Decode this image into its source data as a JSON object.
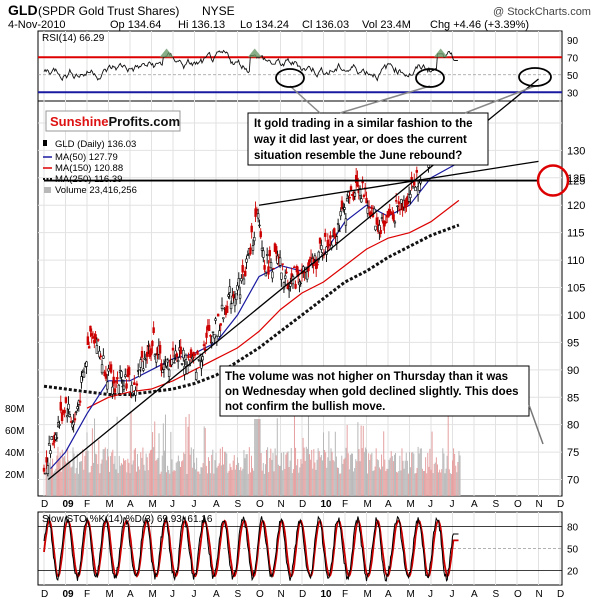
{
  "header": {
    "symbol": "GLD",
    "name": "(SPDR Gold Trust Shares)",
    "exchange": "NYSE",
    "watermark": "@ StockCharts.com",
    "date": "4-Nov-2010",
    "quote": {
      "open": "Op 134.64",
      "high": "Hi 136.13",
      "low": "Lo 134.24",
      "close": "Cl 136.03",
      "volume": "Vol 23.4M",
      "change": "Chg +4.46 (+3.39%)"
    }
  },
  "logo": {
    "part1": "Sunshine",
    "part2": "Profits.com"
  },
  "colors": {
    "price_up": "#000000",
    "price_down": "#cc0000",
    "ma50": "#1a1aa0",
    "ma150": "#dd0000",
    "ma250": "#111111",
    "volume": "#b8b8b8",
    "rsi_line": "#111111",
    "rsi_overbought": "#dd0000",
    "rsi_oversold": "#1a1aa0",
    "annotation_circle": "#dd0000"
  },
  "annotations": {
    "rsi_note": [
      "It gold trading in a similar fashion to the",
      "way it did last year, or does the current",
      "situation resemble the June rebound?"
    ],
    "volume_note": [
      "The volume was not higher on Thursday than it was",
      "on Wednesday when gold declined slightly. This does",
      "not confirm the bullish move."
    ]
  },
  "chart_data": [
    {
      "type": "line",
      "panel": "RSI",
      "title": "RSI(14) 66.29",
      "yticks": [
        30,
        50,
        70,
        90
      ],
      "ylim": [
        20,
        100
      ],
      "levels": [
        70,
        30
      ],
      "current": 66.29
    },
    {
      "type": "candlestick",
      "panel": "Price",
      "title": "GLD (Daily) 136.03",
      "legend": [
        {
          "label": "GLD (Daily) 136.03"
        },
        {
          "label": "MA(50) 127.79"
        },
        {
          "label": "MA(150) 120.88"
        },
        {
          "label": "MA(250) 116.39"
        },
        {
          "label": "Volume 23,416,256"
        }
      ],
      "yticks": [
        70,
        75,
        80,
        85,
        90,
        95,
        100,
        105,
        110,
        115,
        120,
        125,
        130,
        135
      ],
      "ylim": [
        67,
        139
      ],
      "volume_ticks": [
        "20M",
        "40M",
        "60M",
        "80M"
      ],
      "volume_ylim": [
        0,
        100
      ],
      "x_axis_labels": [
        "D",
        "09",
        "F",
        "M",
        "A",
        "M",
        "J",
        "J",
        "A",
        "S",
        "O",
        "N",
        "D",
        "10",
        "F",
        "M",
        "A",
        "M",
        "J",
        "J",
        "A",
        "S",
        "O",
        "N",
        "D"
      ],
      "close_path": [
        {
          "m": 0,
          "v": 72
        },
        {
          "m": 0.5,
          "v": 78
        },
        {
          "m": 1,
          "v": 84
        },
        {
          "m": 1.4,
          "v": 80
        },
        {
          "m": 1.9,
          "v": 90
        },
        {
          "m": 2.2,
          "v": 98
        },
        {
          "m": 2.7,
          "v": 92
        },
        {
          "m": 3.2,
          "v": 87
        },
        {
          "m": 3.7,
          "v": 89
        },
        {
          "m": 4.2,
          "v": 86
        },
        {
          "m": 4.6,
          "v": 92
        },
        {
          "m": 5.1,
          "v": 95
        },
        {
          "m": 5.6,
          "v": 90
        },
        {
          "m": 6.1,
          "v": 93
        },
        {
          "m": 6.6,
          "v": 92
        },
        {
          "m": 7.1,
          "v": 91
        },
        {
          "m": 7.6,
          "v": 96
        },
        {
          "m": 8.1,
          "v": 98
        },
        {
          "m": 8.6,
          "v": 103
        },
        {
          "m": 9.2,
          "v": 106
        },
        {
          "m": 9.6,
          "v": 112
        },
        {
          "m": 9.9,
          "v": 118
        },
        {
          "m": 10.3,
          "v": 109
        },
        {
          "m": 10.8,
          "v": 110
        },
        {
          "m": 11.3,
          "v": 106
        },
        {
          "m": 11.8,
          "v": 107
        },
        {
          "m": 12.3,
          "v": 108
        },
        {
          "m": 12.8,
          "v": 111
        },
        {
          "m": 13.3,
          "v": 114
        },
        {
          "m": 13.8,
          "v": 117
        },
        {
          "m": 14.3,
          "v": 122
        },
        {
          "m": 14.6,
          "v": 124
        },
        {
          "m": 15.1,
          "v": 120
        },
        {
          "m": 15.6,
          "v": 116
        },
        {
          "m": 16.1,
          "v": 118
        },
        {
          "m": 16.6,
          "v": 120
        },
        {
          "m": 17.0,
          "v": 122
        },
        {
          "m": 17.5,
          "v": 126
        },
        {
          "m": 18.0,
          "v": 131
        },
        {
          "m": 18.6,
          "v": 133
        },
        {
          "m": 19.0,
          "v": 131
        },
        {
          "m": 19.3,
          "v": 136
        }
      ],
      "ma50_path": [
        {
          "m": 0.3,
          "v": 72
        },
        {
          "m": 1,
          "v": 75
        },
        {
          "m": 2,
          "v": 82
        },
        {
          "m": 3,
          "v": 88
        },
        {
          "m": 4,
          "v": 88
        },
        {
          "m": 5,
          "v": 90
        },
        {
          "m": 6,
          "v": 92
        },
        {
          "m": 7,
          "v": 93
        },
        {
          "m": 8,
          "v": 95
        },
        {
          "m": 9,
          "v": 100
        },
        {
          "m": 10,
          "v": 107
        },
        {
          "m": 11,
          "v": 109
        },
        {
          "m": 12,
          "v": 108
        },
        {
          "m": 13,
          "v": 111
        },
        {
          "m": 14,
          "v": 117
        },
        {
          "m": 15,
          "v": 120
        },
        {
          "m": 16,
          "v": 118
        },
        {
          "m": 17,
          "v": 120
        },
        {
          "m": 18,
          "v": 125
        },
        {
          "m": 19.3,
          "v": 127.79
        }
      ],
      "ma150_path": [
        {
          "m": 2,
          "v": 83
        },
        {
          "m": 3,
          "v": 85
        },
        {
          "m": 4,
          "v": 86
        },
        {
          "m": 5,
          "v": 86.5
        },
        {
          "m": 6,
          "v": 88
        },
        {
          "m": 7,
          "v": 90
        },
        {
          "m": 8,
          "v": 92
        },
        {
          "m": 9,
          "v": 94
        },
        {
          "m": 10,
          "v": 97
        },
        {
          "m": 11,
          "v": 101
        },
        {
          "m": 12,
          "v": 104
        },
        {
          "m": 13,
          "v": 106
        },
        {
          "m": 14,
          "v": 109
        },
        {
          "m": 15,
          "v": 112
        },
        {
          "m": 16,
          "v": 114
        },
        {
          "m": 17,
          "v": 115
        },
        {
          "m": 18,
          "v": 117
        },
        {
          "m": 19.3,
          "v": 120.88
        }
      ],
      "ma250_path": [
        {
          "m": 0,
          "v": 87
        },
        {
          "m": 1,
          "v": 86.5
        },
        {
          "m": 2,
          "v": 86
        },
        {
          "m": 3,
          "v": 85.5
        },
        {
          "m": 4,
          "v": 85.5
        },
        {
          "m": 5,
          "v": 86
        },
        {
          "m": 6,
          "v": 86.5
        },
        {
          "m": 7,
          "v": 87.5
        },
        {
          "m": 8,
          "v": 89
        },
        {
          "m": 9,
          "v": 91.5
        },
        {
          "m": 10,
          "v": 94
        },
        {
          "m": 11,
          "v": 97
        },
        {
          "m": 12,
          "v": 100
        },
        {
          "m": 13,
          "v": 103
        },
        {
          "m": 14,
          "v": 106
        },
        {
          "m": 15,
          "v": 108
        },
        {
          "m": 16,
          "v": 110.5
        },
        {
          "m": 17,
          "v": 112.5
        },
        {
          "m": 18,
          "v": 114.5
        },
        {
          "m": 19.3,
          "v": 116.39
        }
      ],
      "trendlines": [
        {
          "name": "support",
          "from": {
            "m": 0.2,
            "v": 70
          },
          "to": {
            "m": 23,
            "v": 143
          }
        },
        {
          "name": "resistance-rising",
          "from": {
            "m": 10,
            "v": 120
          },
          "to": {
            "m": 23,
            "v": 128
          }
        },
        {
          "name": "horizontal",
          "from": {
            "m": 0,
            "v": 124.5
          },
          "to": {
            "m": 23,
            "v": 124.5
          }
        }
      ],
      "highlight": {
        "v": 124.5,
        "label": "125"
      }
    },
    {
      "type": "line",
      "panel": "Stochastic",
      "title": "Slow STO %K(14) %D(3) 69.93, 61.16",
      "yticks": [
        20,
        50,
        80
      ],
      "ylim": [
        0,
        100
      ],
      "levels": [
        80,
        20
      ],
      "values": [
        69.93,
        61.16
      ]
    }
  ]
}
